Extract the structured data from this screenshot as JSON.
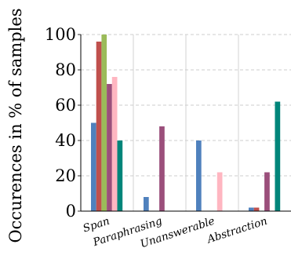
{
  "chart_data": {
    "type": "bar",
    "title": "",
    "xlabel": "",
    "ylabel": "Occurences in % of samples",
    "ylim": [
      0,
      100
    ],
    "yticks": [
      "0",
      "20",
      "40",
      "60",
      "80",
      "100"
    ],
    "grid": "horizontal-dashed",
    "categories": [
      "Span",
      "Paraphrasing",
      "Unanswerable",
      "Abstraction"
    ],
    "series": [
      {
        "color": "#4f81bd",
        "values": [
          50,
          8,
          40,
          2
        ]
      },
      {
        "color": "#c0504d",
        "values": [
          96,
          0,
          0,
          2
        ]
      },
      {
        "color": "#9bbb59",
        "values": [
          100,
          0,
          0,
          0
        ]
      },
      {
        "color": "#9b4f7b",
        "values": [
          72,
          48,
          0,
          22
        ]
      },
      {
        "color": "#ffb6c1",
        "values": [
          76,
          0,
          22,
          0
        ]
      },
      {
        "color": "#00857a",
        "values": [
          40,
          0,
          0,
          62
        ]
      }
    ]
  }
}
